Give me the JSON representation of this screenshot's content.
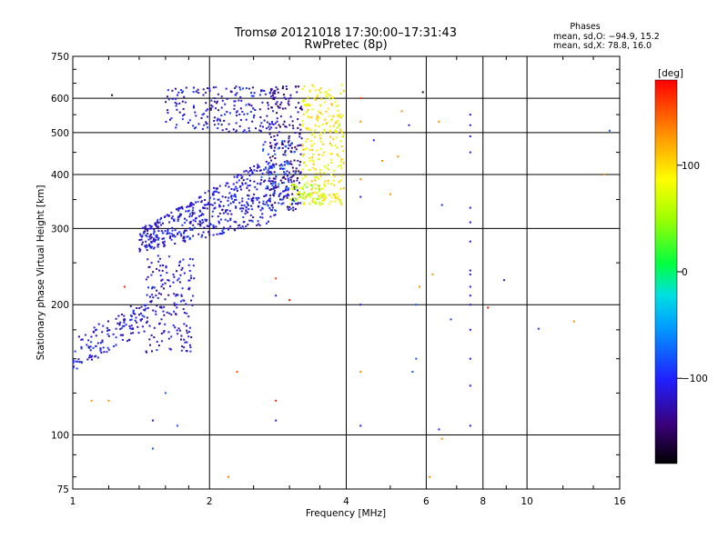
{
  "chart_data": {
    "type": "scatter",
    "title": "Tromsø 20121018 17:30:00–17:31:43",
    "subtitle": "RwPretec (8p)",
    "xlabel": "Frequency [MHz]",
    "ylabel": "Stationary phase Virtual Height [km]",
    "x_scale": "log",
    "y_scale": "log",
    "xlim": [
      1,
      16
    ],
    "ylim": [
      75,
      750
    ],
    "x_ticks": [
      "1",
      "2",
      "4",
      "6",
      "8",
      "10",
      "16"
    ],
    "x_tick_values": [
      1,
      2,
      4,
      6,
      8,
      10,
      16
    ],
    "y_ticks": [
      "75",
      "100",
      "200",
      "300",
      "400",
      "500",
      "600",
      "750"
    ],
    "y_tick_values": [
      75,
      100,
      200,
      300,
      400,
      500,
      600,
      750
    ],
    "grid": true,
    "grid_x": [
      2,
      4,
      6,
      8,
      10
    ],
    "grid_y": [
      100,
      200,
      300,
      400,
      500,
      600
    ],
    "stats": {
      "heading": "Phases",
      "line1": "mean, sd,O: −94.9, 15.2",
      "line2": "mean, sd,X:  78.8, 16.0",
      "o_mean": -94.9,
      "o_sd": 15.2,
      "x_mean": 78.8,
      "x_sd": 16.0
    },
    "colorbar": {
      "label": "[deg]",
      "min": -180,
      "max": 180,
      "ticks": [
        "100",
        "0",
        "−100"
      ],
      "tick_values": [
        100,
        0,
        -100
      ]
    },
    "clusters": [
      {
        "desc": "low O-trace",
        "f": [
          1.0,
          1.45
        ],
        "h": [
          140,
          200
        ],
        "phase": -110,
        "n": 140
      },
      {
        "desc": "low cusp",
        "f": [
          1.45,
          1.85
        ],
        "h": [
          155,
          260
        ],
        "phase": -115,
        "n": 170
      },
      {
        "desc": "F-layer lower trace",
        "f": [
          1.4,
          2.8
        ],
        "h": [
          265,
          420
        ],
        "phase": -110,
        "n": 520
      },
      {
        "desc": "upper echo",
        "f": [
          1.6,
          2.8
        ],
        "h": [
          500,
          640
        ],
        "phase": -110,
        "n": 200
      },
      {
        "desc": "F cusp dark",
        "f": [
          2.7,
          3.2
        ],
        "h": [
          330,
          640
        ],
        "phase": -135,
        "n": 220
      },
      {
        "desc": "F cusp cyan",
        "f": [
          2.6,
          3.1
        ],
        "h": [
          330,
          480
        ],
        "phase": -85,
        "n": 80
      },
      {
        "desc": "X-trace",
        "f": [
          3.2,
          3.95
        ],
        "h": [
          340,
          650
        ],
        "phase": 90,
        "n": 260
      },
      {
        "desc": "X-trace edge",
        "f": [
          3.0,
          3.6
        ],
        "h": [
          340,
          380
        ],
        "phase": 60,
        "n": 60
      }
    ],
    "sparse_points": [
      {
        "f": 8.9,
        "h": 228,
        "phase": -110
      },
      {
        "f": 10.6,
        "h": 176,
        "phase": -95
      },
      {
        "f": 12.7,
        "h": 183,
        "phase": 130
      },
      {
        "f": 15.2,
        "h": 505,
        "phase": -80
      },
      {
        "f": 14.8,
        "h": 400,
        "phase": 130
      },
      {
        "f": 8.2,
        "h": 197,
        "phase": 170
      },
      {
        "f": 5.9,
        "h": 620,
        "phase": -170
      },
      {
        "f": 6.1,
        "h": 80,
        "phase": 130
      },
      {
        "f": 6.5,
        "h": 98,
        "phase": 130
      },
      {
        "f": 6.4,
        "h": 103,
        "phase": -100
      },
      {
        "f": 6.8,
        "h": 185,
        "phase": -90
      },
      {
        "f": 6.5,
        "h": 340,
        "phase": -100
      },
      {
        "f": 6.2,
        "h": 235,
        "phase": 130
      },
      {
        "f": 6.4,
        "h": 530,
        "phase": 130
      },
      {
        "f": 2.2,
        "h": 80,
        "phase": 140
      },
      {
        "f": 2.3,
        "h": 140,
        "phase": 150
      },
      {
        "f": 2.8,
        "h": 230,
        "phase": 160
      },
      {
        "f": 2.8,
        "h": 210,
        "phase": -110
      },
      {
        "f": 3.0,
        "h": 205,
        "phase": 170
      },
      {
        "f": 2.8,
        "h": 108,
        "phase": -110
      },
      {
        "f": 2.8,
        "h": 120,
        "phase": 170
      },
      {
        "f": 1.5,
        "h": 108,
        "phase": -110
      },
      {
        "f": 1.6,
        "h": 125,
        "phase": -80
      },
      {
        "f": 1.7,
        "h": 105,
        "phase": -80
      },
      {
        "f": 1.5,
        "h": 93,
        "phase": -80
      },
      {
        "f": 1.1,
        "h": 120,
        "phase": 130
      },
      {
        "f": 1.2,
        "h": 120,
        "phase": 130
      },
      {
        "f": 1.3,
        "h": 220,
        "phase": 170
      },
      {
        "f": 1.22,
        "h": 610,
        "phase": -170
      },
      {
        "f": 4.3,
        "h": 105,
        "phase": -100
      },
      {
        "f": 4.3,
        "h": 140,
        "phase": 130
      },
      {
        "f": 4.3,
        "h": 200,
        "phase": -120
      },
      {
        "f": 4.3,
        "h": 355,
        "phase": -100
      },
      {
        "f": 4.3,
        "h": 390,
        "phase": 130
      },
      {
        "f": 4.3,
        "h": 530,
        "phase": 130
      },
      {
        "f": 4.3,
        "h": 600,
        "phase": 160
      },
      {
        "f": 4.6,
        "h": 480,
        "phase": -110
      },
      {
        "f": 4.8,
        "h": 430,
        "phase": 130
      },
      {
        "f": 5.0,
        "h": 360,
        "phase": 130
      },
      {
        "f": 5.2,
        "h": 440,
        "phase": 130
      },
      {
        "f": 5.3,
        "h": 560,
        "phase": 130
      },
      {
        "f": 5.5,
        "h": 520,
        "phase": -110
      },
      {
        "f": 5.7,
        "h": 200,
        "phase": -80
      },
      {
        "f": 5.7,
        "h": 150,
        "phase": -80
      },
      {
        "f": 5.6,
        "h": 140,
        "phase": -80
      },
      {
        "f": 5.8,
        "h": 220,
        "phase": 130
      }
    ],
    "column_points": {
      "f": 7.5,
      "h": [
        105,
        130,
        150,
        175,
        200,
        210,
        220,
        235,
        240,
        280,
        310,
        335,
        450,
        490,
        520,
        550
      ],
      "phase": -120
    }
  }
}
